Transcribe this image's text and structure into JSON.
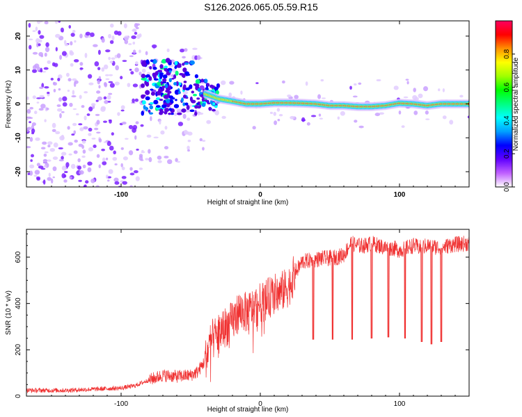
{
  "title": "S126.2026.065.05.59.R15",
  "chart_data": [
    {
      "type": "heatmap",
      "title": "S126.2026.065.05.59.R15",
      "xlabel": "Height of straight line (km)",
      "ylabel": "Frequency (Hz)",
      "xlim": [
        -168,
        150
      ],
      "ylim": [
        -24.5,
        24.5
      ],
      "x_ticks": [
        "-100",
        "0",
        "100"
      ],
      "y_ticks": [
        "-20",
        "-10",
        "0",
        "10",
        "20"
      ],
      "colorbar": {
        "label": "Normalized spectral amplitude",
        "range": [
          0.0,
          1.0
        ],
        "ticks": [
          "0.0",
          "0.2",
          "0.4",
          "0.6",
          "0.8"
        ],
        "colors": [
          "#ffffff",
          "#c060ff",
          "#6000ff",
          "#0000ff",
          "#00a0ff",
          "#00ffff",
          "#00ff80",
          "#00ff00",
          "#a0ff00",
          "#ffff00",
          "#ff9000",
          "#ff0000",
          "#ff0060"
        ]
      },
      "ridge": {
        "x": [
          -40,
          -30,
          -20,
          -10,
          0,
          10,
          20,
          30,
          40,
          50,
          60,
          70,
          80,
          90,
          100,
          110,
          120,
          130,
          140,
          150
        ],
        "frequency": [
          3,
          1.5,
          0.8,
          0,
          0,
          0.3,
          0.3,
          0.2,
          0,
          -0.5,
          -0.5,
          -0.8,
          -0.8,
          -0.5,
          0.2,
          0,
          -0.5,
          0,
          0,
          0
        ]
      }
    },
    {
      "type": "line",
      "xlabel": "Height of straight line (km)",
      "ylabel": "SNR (10 * v/v)",
      "xlim": [
        -168,
        150
      ],
      "ylim": [
        0,
        720
      ],
      "x_ticks": [
        "-100",
        "0",
        "100"
      ],
      "y_ticks": [
        "0",
        "200",
        "400",
        "600"
      ],
      "color": "#f03030",
      "x": [
        -168,
        -140,
        -120,
        -100,
        -90,
        -80,
        -70,
        -60,
        -50,
        -45,
        -40,
        -35,
        -30,
        -25,
        -20,
        -15,
        -10,
        -5,
        0,
        5,
        10,
        15,
        20,
        25,
        30,
        35,
        40,
        45,
        50,
        55,
        60,
        65,
        70,
        75,
        80,
        85,
        90,
        95,
        100,
        105,
        110,
        115,
        120,
        125,
        130,
        135,
        140,
        150
      ],
      "y": [
        25,
        25,
        30,
        35,
        45,
        70,
        90,
        85,
        90,
        105,
        150,
        240,
        270,
        300,
        320,
        370,
        360,
        380,
        400,
        420,
        440,
        450,
        470,
        530,
        580,
        585,
        590,
        595,
        595,
        600,
        610,
        660,
        650,
        650,
        660,
        650,
        640,
        640,
        630,
        640,
        650,
        640,
        650,
        645,
        640,
        650,
        655,
        660
      ],
      "dips": [
        {
          "x": 38,
          "y": 245
        },
        {
          "x": 52,
          "y": 245
        },
        {
          "x": 66,
          "y": 245
        },
        {
          "x": 80,
          "y": 250
        },
        {
          "x": 92,
          "y": 255
        },
        {
          "x": 104,
          "y": 250
        },
        {
          "x": 116,
          "y": 235
        },
        {
          "x": 123,
          "y": 225
        },
        {
          "x": 130,
          "y": 235
        }
      ]
    }
  ]
}
